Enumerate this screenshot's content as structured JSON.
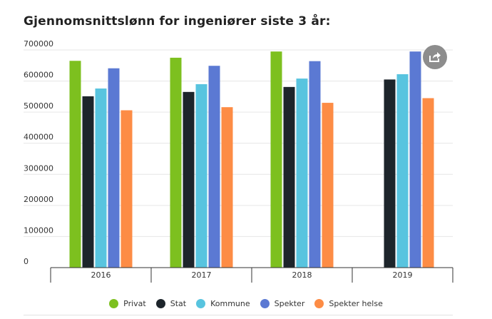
{
  "chart_data": {
    "type": "bar",
    "title": "Gjennomsnittslønn for ingeniører siste 3 år:",
    "categories": [
      "2016",
      "2017",
      "2018",
      "2019"
    ],
    "series": [
      {
        "name": "Privat",
        "color": "#7dc01f",
        "values": [
          665000,
          675000,
          695000,
          null
        ]
      },
      {
        "name": "Stat",
        "color": "#1d252b",
        "values": [
          551000,
          565000,
          581000,
          605000
        ]
      },
      {
        "name": "Kommune",
        "color": "#58c4df",
        "values": [
          576000,
          590000,
          608000,
          622000
        ]
      },
      {
        "name": "Spekter",
        "color": "#5b79d3",
        "values": [
          641000,
          649000,
          664000,
          695000
        ]
      },
      {
        "name": "Spekter helse",
        "color": "#fd8c45",
        "values": [
          506000,
          516000,
          530000,
          545000
        ]
      }
    ],
    "yticks": [
      "0",
      "100000",
      "200000",
      "300000",
      "400000",
      "500000",
      "600000",
      "700000"
    ],
    "ylim": [
      0,
      700000
    ],
    "grid": true,
    "legend_position": "bottom"
  },
  "share_button": {
    "icon": "share-icon"
  }
}
